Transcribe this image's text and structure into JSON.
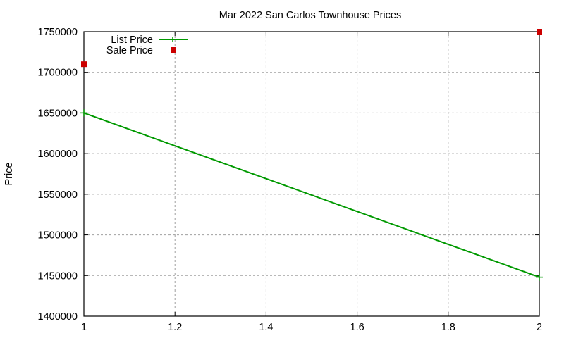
{
  "chart_data": {
    "type": "line",
    "title": "Mar 2022 San Carlos Townhouse Prices",
    "xlabel": "",
    "ylabel": "Price",
    "xlim": [
      1,
      2
    ],
    "ylim": [
      1400000,
      1750000
    ],
    "x_ticks": [
      "1",
      "1.2",
      "1.4",
      "1.6",
      "1.8",
      "2"
    ],
    "y_ticks": [
      "1400000",
      "1450000",
      "1500000",
      "1550000",
      "1600000",
      "1650000",
      "1700000",
      "1750000"
    ],
    "grid": true,
    "legend_position": "top-left",
    "series": [
      {
        "name": "List Price",
        "style": "lines+points",
        "color": "#009900",
        "x": [
          1,
          2
        ],
        "values": [
          1650000,
          1448000
        ]
      },
      {
        "name": "Sale Price",
        "style": "points",
        "marker": "square",
        "color": "#cc0000",
        "x": [
          1,
          2
        ],
        "values": [
          1710000,
          1750000
        ]
      }
    ]
  }
}
